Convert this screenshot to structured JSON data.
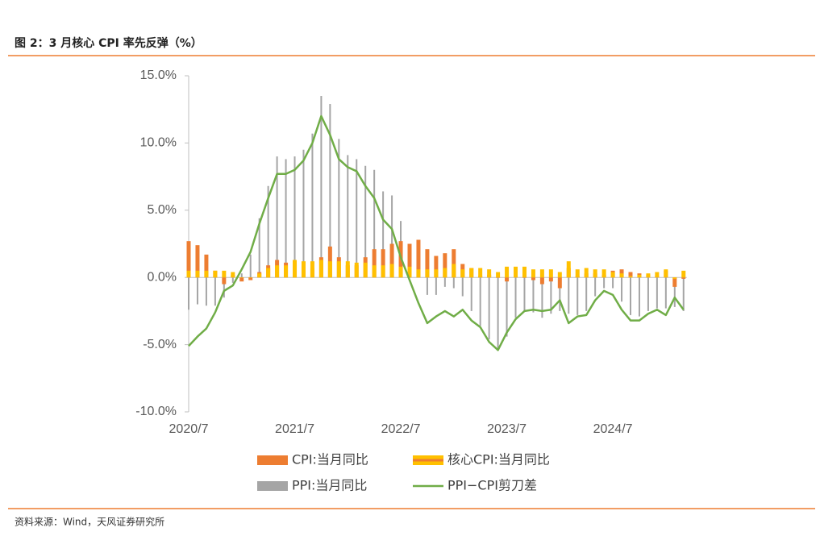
{
  "header": {
    "title": "图 2：3 月核心 CPI 率先反弹（%）"
  },
  "chart_data": {
    "type": "bar-line",
    "categories": [
      "2020/7",
      null,
      null,
      null,
      null,
      null,
      null,
      null,
      null,
      null,
      null,
      null,
      "2021/7",
      null,
      null,
      null,
      null,
      null,
      null,
      null,
      null,
      null,
      null,
      null,
      "2022/7",
      null,
      null,
      null,
      null,
      null,
      null,
      null,
      null,
      null,
      null,
      null,
      "2023/7",
      null,
      null,
      null,
      null,
      null,
      null,
      null,
      null,
      null,
      null,
      null,
      "2024/7",
      null,
      null,
      null,
      null,
      null,
      null,
      null,
      null
    ],
    "ylim": [
      -10,
      15
    ],
    "yticks": [
      {
        "value": -10,
        "label": "-10.0%"
      },
      {
        "value": -5,
        "label": "-5.0%"
      },
      {
        "value": 0,
        "label": "0.0%"
      },
      {
        "value": 5,
        "label": "5.0%"
      },
      {
        "value": 10,
        "label": "10.0%"
      },
      {
        "value": 15,
        "label": "15.0%"
      }
    ],
    "series": [
      {
        "name": "CPI:当月同比",
        "type": "bar",
        "color": "#ed7d31",
        "values": [
          2.7,
          2.4,
          1.7,
          0.5,
          -0.5,
          0.2,
          -0.3,
          -0.2,
          0.4,
          0.9,
          1.3,
          1.1,
          1.0,
          0.8,
          0.7,
          1.5,
          2.3,
          1.5,
          0.9,
          0.9,
          1.5,
          2.1,
          2.1,
          2.5,
          2.7,
          2.5,
          2.8,
          2.1,
          1.6,
          1.8,
          2.1,
          1.0,
          0.7,
          0.1,
          0.2,
          0.0,
          -0.3,
          0.1,
          0.0,
          -0.2,
          -0.5,
          -0.3,
          -0.8,
          0.7,
          0.1,
          0.3,
          0.3,
          0.2,
          0.5,
          0.6,
          0.4,
          0.3,
          0.2,
          0.1,
          0.5,
          -0.7,
          -0.1
        ]
      },
      {
        "name": "核心CPI:当月同比",
        "type": "bar",
        "color": "#ffc000",
        "values": [
          0.5,
          0.5,
          0.5,
          0.5,
          0.5,
          0.4,
          0.0,
          0.0,
          0.3,
          0.7,
          0.9,
          0.9,
          1.3,
          1.2,
          1.2,
          1.3,
          1.2,
          1.2,
          1.2,
          1.1,
          1.1,
          0.9,
          0.9,
          1.0,
          0.8,
          0.8,
          0.6,
          0.6,
          0.6,
          0.7,
          1.0,
          0.6,
          0.7,
          0.7,
          0.6,
          0.4,
          0.8,
          0.8,
          0.8,
          0.6,
          0.6,
          0.6,
          0.4,
          1.2,
          0.6,
          0.7,
          0.6,
          0.6,
          0.4,
          0.3,
          0.1,
          0.2,
          0.3,
          0.4,
          0.6,
          -0.1,
          0.5
        ]
      },
      {
        "name": "PPI:当月同比",
        "type": "bar",
        "color": "#a5a5a5",
        "values": [
          -2.4,
          -2.0,
          -2.1,
          -2.1,
          -1.5,
          -0.4,
          0.3,
          1.7,
          4.4,
          6.8,
          9.0,
          8.8,
          9.0,
          9.5,
          10.7,
          13.5,
          12.9,
          10.3,
          9.1,
          8.8,
          8.3,
          8.0,
          6.4,
          6.1,
          4.2,
          2.3,
          0.9,
          -1.3,
          -1.3,
          -0.7,
          -0.8,
          -1.4,
          -2.5,
          -3.6,
          -4.6,
          -5.4,
          -4.4,
          -3.0,
          -2.5,
          -2.6,
          -3.0,
          -2.7,
          -2.5,
          -2.7,
          -2.8,
          -2.5,
          -1.4,
          -0.8,
          -0.8,
          -1.8,
          -2.8,
          -2.9,
          -2.5,
          -2.3,
          -2.3,
          -2.2,
          -2.5
        ]
      },
      {
        "name": "PPI−CPI剪刀差",
        "type": "line",
        "color": "#70ad47",
        "values": [
          -5.1,
          -4.4,
          -3.8,
          -2.6,
          -1.0,
          -0.6,
          0.6,
          1.9,
          4.0,
          5.9,
          7.7,
          7.7,
          8.0,
          8.7,
          10.0,
          12.0,
          10.6,
          8.8,
          8.2,
          7.9,
          6.8,
          5.9,
          4.3,
          3.6,
          1.5,
          -0.2,
          -1.9,
          -3.4,
          -2.9,
          -2.5,
          -2.9,
          -2.4,
          -3.2,
          -3.7,
          -4.8,
          -5.4,
          -4.1,
          -3.1,
          -2.5,
          -2.4,
          -2.5,
          -2.4,
          -1.7,
          -3.4,
          -2.9,
          -2.8,
          -1.7,
          -1.0,
          -1.3,
          -2.4,
          -3.2,
          -3.2,
          -2.7,
          -2.4,
          -2.8,
          -1.5,
          -2.4
        ]
      }
    ]
  },
  "footer": {
    "source": "资料来源：Wind，天风证券研究所"
  }
}
